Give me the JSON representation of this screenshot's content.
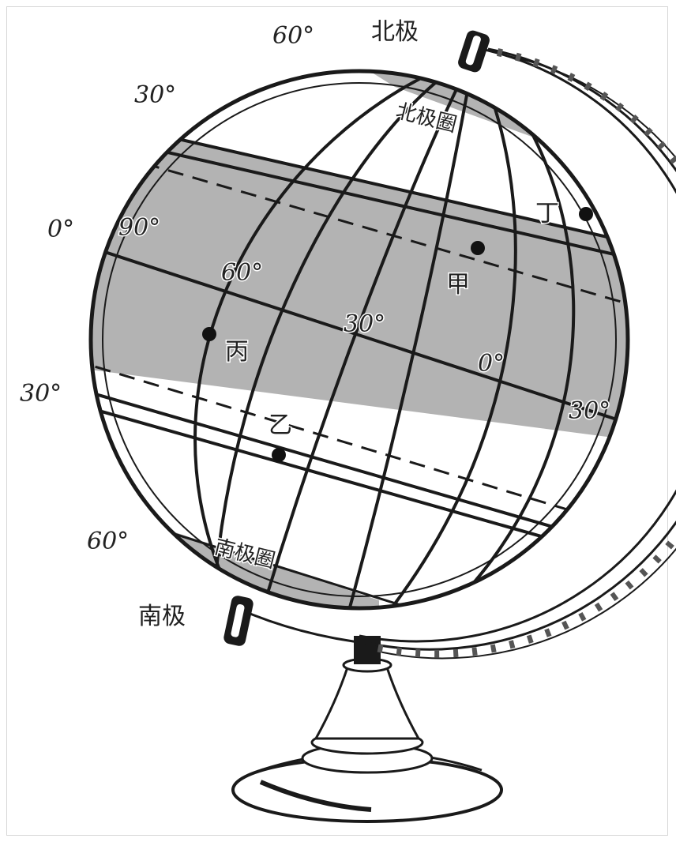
{
  "figure": {
    "poles": {
      "north": "北极",
      "south": "南极"
    },
    "circles": {
      "arctic": "北极圈",
      "antarctic": "南极圈"
    },
    "latitude_labels": {
      "lat_60_top": "60°",
      "lat_30_top": "30°",
      "lat_0": "0°",
      "lat_30_left": "30°",
      "lat_60_bottom": "60°"
    },
    "longitude_labels": {
      "lon_90": "90°",
      "lon_60": "60°",
      "lon_30": "30°",
      "lon_0": "0°",
      "lon_30_right": "30°"
    },
    "points": {
      "jia": "甲",
      "yi": "乙",
      "bing": "丙",
      "ding": "丁"
    },
    "colors": {
      "shaded_band": "#b3b3b3",
      "ink": "#1a1a1a",
      "background": "#ffffff"
    }
  }
}
